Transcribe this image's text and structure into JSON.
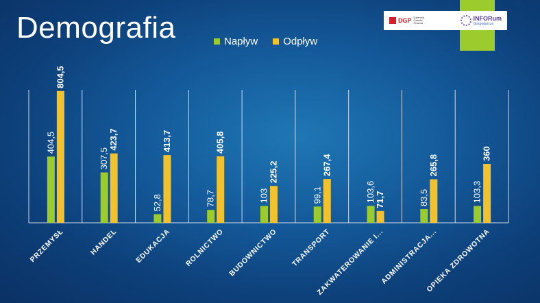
{
  "slide": {
    "title": "Demografia",
    "logos": {
      "dgp_mark": "DGP",
      "dgp_sub": "Dziennik Gazeta Prawna",
      "inforum_main": "INFORum",
      "inforum_sub": "Gospodarcze"
    }
  },
  "colors": {
    "naplyw": "#9bcb2c",
    "odplyw": "#f2c12e",
    "axis": "#d0dcea",
    "label": "#ffffff"
  },
  "chart_data": {
    "type": "bar",
    "title": "",
    "xlabel": "",
    "ylabel": "",
    "ylim": [
      0,
      900
    ],
    "grid": false,
    "legend_position": "top",
    "categories": [
      "PRZEMYSŁ",
      "HANDEL",
      "EDUKACJA",
      "ROLNICTWO",
      "BUDOWNICTWO",
      "TRANSPORT",
      "ZAKWATEROWANIE I...",
      "ADMINISTRACJA...",
      "OPIEKA ZDROWOTNA"
    ],
    "series": [
      {
        "name": "Napływ",
        "values": [
          404.5,
          307.5,
          52.8,
          78.7,
          103,
          99.1,
          103.6,
          83.5,
          103.3
        ],
        "labels": [
          "404,5",
          "307,5",
          "52,8",
          "78,7",
          "103",
          "99,1",
          "103,6",
          "83,5",
          "103,3"
        ]
      },
      {
        "name": "Odpływ",
        "values": [
          804.5,
          423.7,
          413.7,
          405.8,
          225.2,
          267.4,
          71.7,
          265.8,
          360
        ],
        "labels": [
          "804,5",
          "423,7",
          "413,7",
          "405,8",
          "225,2",
          "267,4",
          "71,7",
          "265,8",
          "360"
        ]
      }
    ]
  }
}
